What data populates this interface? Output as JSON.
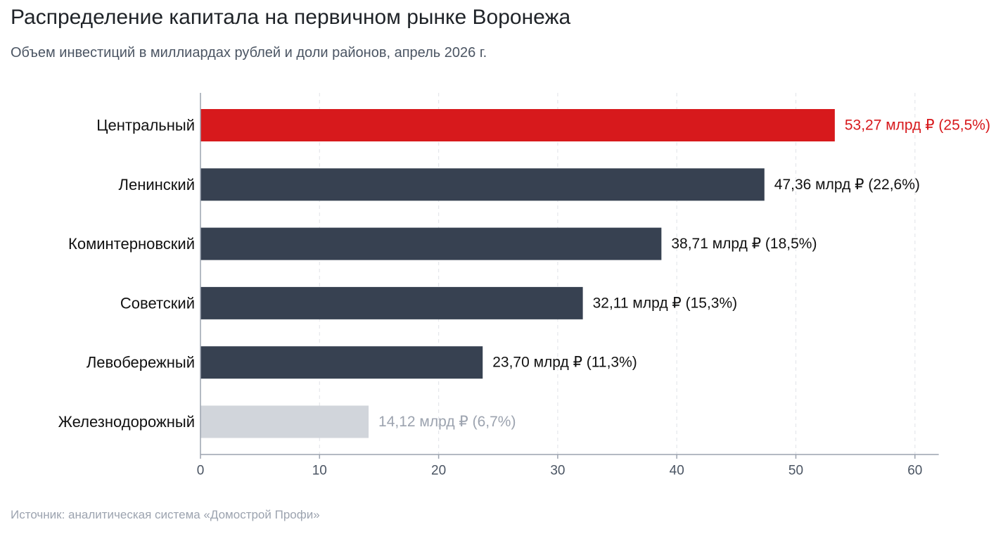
{
  "header": {
    "title": "Распределение капитала на первичном рынке Воронежа",
    "subtitle": "Объем инвестиций в миллиардах рублей и доли районов, апрель 2026 г."
  },
  "footer": {
    "source": "Источник: аналитическая система «Домострой Профи»"
  },
  "chart_data": {
    "type": "bar",
    "orientation": "horizontal",
    "title": "Распределение капитала на первичном рынке Воронежа",
    "subtitle": "Объем инвестиций в миллиардах рублей и доли районов, апрель 2026 г.",
    "categories": [
      "Центральный",
      "Ленинский",
      "Коминтерновский",
      "Советский",
      "Левобережный",
      "Железнодорожный"
    ],
    "values": [
      53.27,
      47.36,
      38.71,
      32.11,
      23.7,
      14.12
    ],
    "shares": [
      25.5,
      22.6,
      18.5,
      15.3,
      11.3,
      6.7
    ],
    "data_labels": [
      "53,27 млрд ₽ (25,5%)",
      "47,36 млрд ₽ (22,6%)",
      "38,71 млрд ₽ (18,5%)",
      "32,11 млрд ₽ (15,3%)",
      "23,70 млрд ₽ (11,3%)",
      "14,12 млрд ₽ (6,7%)"
    ],
    "bar_colors": [
      "#d7191c",
      "#374151",
      "#374151",
      "#374151",
      "#374151",
      "#d1d5db"
    ],
    "label_colors": [
      "#d7191c",
      "#111111",
      "#111111",
      "#111111",
      "#111111",
      "#9ca3af"
    ],
    "xlim": [
      0,
      62
    ],
    "xticks": [
      0,
      10,
      20,
      30,
      40,
      50,
      60
    ],
    "xlabel": "",
    "ylabel": "",
    "grid": "vertical dashed",
    "legend": "none"
  }
}
